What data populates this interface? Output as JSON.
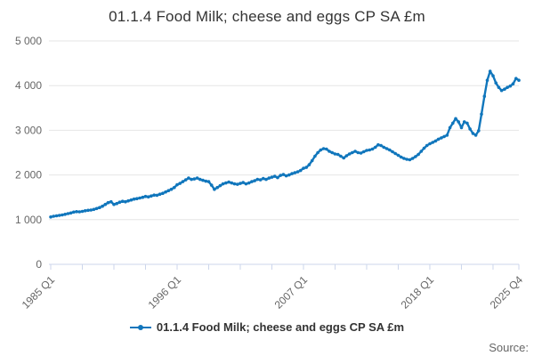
{
  "chart": {
    "title": "01.1.4 Food Milk; cheese and eggs CP SA £m",
    "legend_label": "01.1.4 Food Milk; cheese and eggs CP SA £m",
    "source_label": "Source:"
  },
  "theme": {
    "series_color": "#1076bc",
    "axis_line_color": "#ccd6eb",
    "grid_color": "#e6e6e6",
    "axis_text_color": "#666666",
    "title_color": "#333333",
    "legend_text_color": "#333333"
  },
  "chart_data": {
    "type": "line",
    "title": "01.1.4 Food Milk; cheese and eggs CP SA £m",
    "series_name": "01.1.4 Food Milk; cheese and eggs CP SA £m",
    "frequency": "quarterly",
    "x_start": "1985 Q1",
    "x_end": "2025 Q4",
    "x_tick_labels": [
      "1985 Q1",
      "1996 Q1",
      "2007 Q1",
      "2018 Q1",
      "2025 Q4"
    ],
    "x_tick_positions_quarters": [
      0,
      44,
      88,
      132,
      163
    ],
    "minor_tick_every_quarters": 11,
    "y_tick_labels": [
      "0",
      "1 000",
      "2 000",
      "3 000",
      "4 000",
      "5 000"
    ],
    "ylim": [
      0,
      5000
    ],
    "grid": "horizontal",
    "markers": true,
    "legend_position": "bottom",
    "values": [
      1060,
      1075,
      1085,
      1095,
      1105,
      1120,
      1135,
      1150,
      1170,
      1180,
      1175,
      1185,
      1200,
      1210,
      1215,
      1230,
      1250,
      1270,
      1300,
      1340,
      1380,
      1400,
      1340,
      1360,
      1390,
      1410,
      1400,
      1420,
      1440,
      1460,
      1470,
      1485,
      1500,
      1520,
      1510,
      1530,
      1550,
      1545,
      1570,
      1590,
      1620,
      1650,
      1680,
      1720,
      1780,
      1810,
      1850,
      1890,
      1930,
      1900,
      1910,
      1930,
      1900,
      1880,
      1860,
      1850,
      1770,
      1680,
      1720,
      1760,
      1800,
      1820,
      1840,
      1820,
      1800,
      1790,
      1810,
      1830,
      1800,
      1820,
      1850,
      1870,
      1900,
      1890,
      1920,
      1900,
      1930,
      1950,
      1970,
      1940,
      1990,
      2010,
      1980,
      2000,
      2030,
      2050,
      2070,
      2100,
      2150,
      2170,
      2230,
      2320,
      2420,
      2500,
      2560,
      2590,
      2580,
      2530,
      2500,
      2470,
      2460,
      2420,
      2380,
      2430,
      2470,
      2500,
      2530,
      2500,
      2490,
      2520,
      2550,
      2560,
      2580,
      2620,
      2675,
      2660,
      2620,
      2590,
      2560,
      2520,
      2480,
      2440,
      2400,
      2370,
      2350,
      2340,
      2370,
      2410,
      2460,
      2530,
      2600,
      2660,
      2700,
      2730,
      2760,
      2800,
      2830,
      2860,
      2890,
      3060,
      3160,
      3260,
      3190,
      3060,
      3190,
      3160,
      3030,
      2930,
      2890,
      2990,
      3360,
      3760,
      4120,
      4320,
      4220,
      4060,
      3960,
      3890,
      3920,
      3960,
      3990,
      4040,
      4160,
      4120
    ]
  }
}
